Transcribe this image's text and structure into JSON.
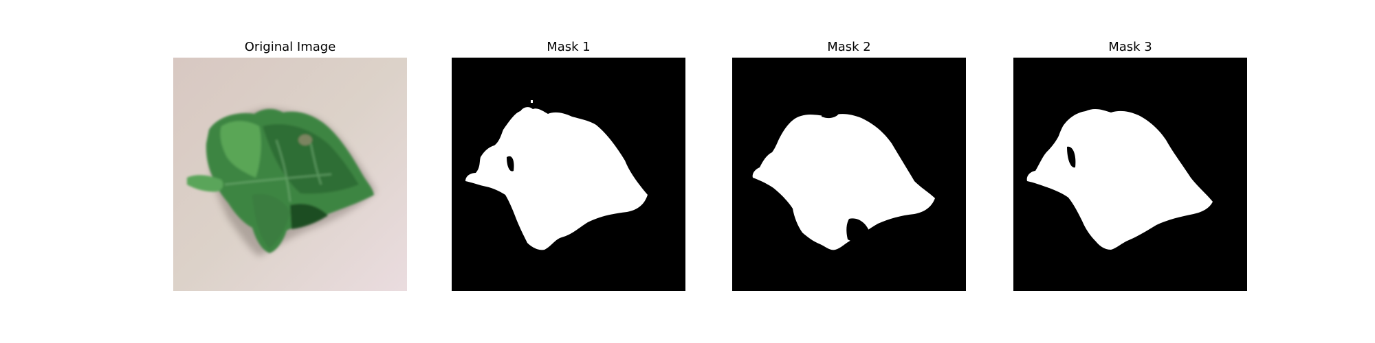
{
  "figure": {
    "panels": [
      {
        "title": "Original Image",
        "kind": "photo"
      },
      {
        "title": "Mask 1",
        "kind": "mask"
      },
      {
        "title": "Mask 2",
        "kind": "mask"
      },
      {
        "title": "Mask 3",
        "kind": "mask"
      }
    ]
  },
  "colors": {
    "background": "#ffffff",
    "mask_background": "#000000",
    "mask_foreground": "#ffffff",
    "leaf_dark": "#2f6b34",
    "leaf_mid": "#3f8a45",
    "leaf_light": "#5aa55a",
    "paper": "#ddd0c8"
  }
}
